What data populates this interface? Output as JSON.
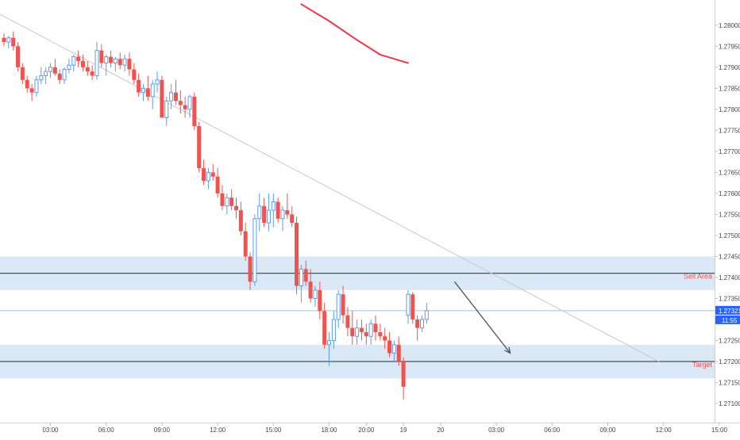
{
  "chart_data": {
    "type": "candlestick",
    "title": "",
    "xlabel": "",
    "ylabel": "",
    "ylim": [
      1.2707,
      1.2806
    ],
    "grid": false,
    "colors": {
      "up": "#5b9cf6",
      "down": "#ef5350",
      "zone_fill": "#dbe8f6",
      "trendline": "#c8c8c8",
      "moving_average": "#f23645",
      "arrow": "#4a5560",
      "price_line": "#9ec4ea",
      "price_label_bg": "#2962ff",
      "axis_text": "#444444"
    },
    "y_ticks": [
      "1.27100",
      "1.27150",
      "1.27200",
      "1.27250",
      "1.27300",
      "1.27350",
      "1.27400",
      "1.27450",
      "1.27500",
      "1.27550",
      "1.27600",
      "1.27650",
      "1.27700",
      "1.27750",
      "1.27800",
      "1.27850",
      "1.27900",
      "1.27950",
      "1.28000"
    ],
    "x_ticks": [
      {
        "label": "03:00",
        "bar": 10
      },
      {
        "label": "06:00",
        "bar": 22
      },
      {
        "label": "09:00",
        "bar": 34
      },
      {
        "label": "12:00",
        "bar": 46
      },
      {
        "label": "15:00",
        "bar": 58
      },
      {
        "label": "18:00",
        "bar": 70
      },
      {
        "label": "20:00",
        "bar": 78
      },
      {
        "label": "19",
        "bar": 86
      },
      {
        "label": "20",
        "bar": 94
      },
      {
        "label": "03:00",
        "bar": 106
      },
      {
        "label": "06:00",
        "bar": 118
      },
      {
        "label": "09:00",
        "bar": 130
      },
      {
        "label": "12:00",
        "bar": 142
      },
      {
        "label": "15:00",
        "bar": 154
      }
    ],
    "candles": [
      [
        1.2797,
        1.2798,
        1.2795,
        1.2796
      ],
      [
        1.2796,
        1.27975,
        1.27945,
        1.2797
      ],
      [
        1.2797,
        1.27985,
        1.2794,
        1.2795
      ],
      [
        1.2795,
        1.2796,
        1.2789,
        1.279
      ],
      [
        1.279,
        1.2791,
        1.2786,
        1.2787
      ],
      [
        1.2787,
        1.2788,
        1.2784,
        1.2785
      ],
      [
        1.2785,
        1.2786,
        1.2782,
        1.2784
      ],
      [
        1.2784,
        1.2788,
        1.2783,
        1.2787
      ],
      [
        1.2787,
        1.279,
        1.2786,
        1.2788
      ],
      [
        1.2788,
        1.279,
        1.2786,
        1.2789
      ],
      [
        1.2789,
        1.2791,
        1.27875,
        1.279
      ],
      [
        1.279,
        1.2792,
        1.2788,
        1.27885
      ],
      [
        1.27885,
        1.27895,
        1.2786,
        1.2787
      ],
      [
        1.2787,
        1.279,
        1.2786,
        1.27895
      ],
      [
        1.27895,
        1.2792,
        1.27885,
        1.27905
      ],
      [
        1.27905,
        1.2793,
        1.2789,
        1.27925
      ],
      [
        1.27925,
        1.2794,
        1.279,
        1.27915
      ],
      [
        1.27915,
        1.2793,
        1.2789,
        1.279
      ],
      [
        1.279,
        1.27915,
        1.2788,
        1.2789
      ],
      [
        1.2789,
        1.27905,
        1.2787,
        1.2788
      ],
      [
        1.2788,
        1.2796,
        1.2787,
        1.2794
      ],
      [
        1.2794,
        1.27955,
        1.279,
        1.2791
      ],
      [
        1.2791,
        1.2793,
        1.2788,
        1.27925
      ],
      [
        1.27925,
        1.2794,
        1.279,
        1.2791
      ],
      [
        1.2791,
        1.27925,
        1.2789,
        1.2792
      ],
      [
        1.2792,
        1.27935,
        1.27895,
        1.27905
      ],
      [
        1.27905,
        1.2793,
        1.2789,
        1.2792
      ],
      [
        1.2792,
        1.27935,
        1.2788,
        1.27895
      ],
      [
        1.27895,
        1.2791,
        1.2786,
        1.2787
      ],
      [
        1.2787,
        1.27885,
        1.2783,
        1.2784
      ],
      [
        1.2784,
        1.2786,
        1.2782,
        1.2785
      ],
      [
        1.2785,
        1.2788,
        1.2782,
        1.2783
      ],
      [
        1.2783,
        1.2787,
        1.278,
        1.2786
      ],
      [
        1.2786,
        1.2789,
        1.2784,
        1.2787
      ],
      [
        1.2787,
        1.2788,
        1.2778,
        1.2778
      ],
      [
        1.2778,
        1.2783,
        1.2776,
        1.2782
      ],
      [
        1.2782,
        1.2786,
        1.278,
        1.2784
      ],
      [
        1.2784,
        1.2787,
        1.2781,
        1.2782
      ],
      [
        1.2782,
        1.27845,
        1.2779,
        1.2781
      ],
      [
        1.2781,
        1.2783,
        1.2778,
        1.278
      ],
      [
        1.278,
        1.27835,
        1.2778,
        1.2783
      ],
      [
        1.2783,
        1.2784,
        1.2775,
        1.2776
      ],
      [
        1.2776,
        1.2777,
        1.2765,
        1.2766
      ],
      [
        1.2766,
        1.2768,
        1.2762,
        1.2763
      ],
      [
        1.2763,
        1.2766,
        1.2761,
        1.2765
      ],
      [
        1.2765,
        1.2767,
        1.2763,
        1.2764
      ],
      [
        1.2764,
        1.2766,
        1.2759,
        1.276
      ],
      [
        1.276,
        1.2762,
        1.2756,
        1.2757
      ],
      [
        1.2757,
        1.276,
        1.2755,
        1.2759
      ],
      [
        1.2759,
        1.2761,
        1.2756,
        1.2757
      ],
      [
        1.2757,
        1.2759,
        1.2754,
        1.2756
      ],
      [
        1.2756,
        1.2758,
        1.275,
        1.2751
      ],
      [
        1.2751,
        1.2753,
        1.2744,
        1.2745
      ],
      [
        1.2745,
        1.2746,
        1.2737,
        1.2739
      ],
      [
        1.2739,
        1.2755,
        1.2738,
        1.2754
      ],
      [
        1.2754,
        1.276,
        1.2751,
        1.2757
      ],
      [
        1.2757,
        1.2759,
        1.2752,
        1.2753
      ],
      [
        1.2753,
        1.276,
        1.2751,
        1.2756
      ],
      [
        1.2756,
        1.276,
        1.2752,
        1.2758
      ],
      [
        1.2758,
        1.2759,
        1.2753,
        1.2754
      ],
      [
        1.2754,
        1.2757,
        1.2751,
        1.2756
      ],
      [
        1.2756,
        1.276,
        1.2754,
        1.2755
      ],
      [
        1.2755,
        1.2757,
        1.2752,
        1.2753
      ],
      [
        1.2753,
        1.27545,
        1.2736,
        1.2738
      ],
      [
        1.2738,
        1.2743,
        1.2734,
        1.2742
      ],
      [
        1.2742,
        1.2744,
        1.2738,
        1.2739
      ],
      [
        1.2739,
        1.2742,
        1.2734,
        1.2735
      ],
      [
        1.2735,
        1.2738,
        1.2733,
        1.2737
      ],
      [
        1.2737,
        1.2739,
        1.273,
        1.2732
      ],
      [
        1.2732,
        1.2734,
        1.2723,
        1.2724
      ],
      [
        1.2724,
        1.2727,
        1.2719,
        1.2725
      ],
      [
        1.2725,
        1.2732,
        1.2723,
        1.273
      ],
      [
        1.273,
        1.2737,
        1.2728,
        1.2736
      ],
      [
        1.2736,
        1.2738,
        1.2729,
        1.2731
      ],
      [
        1.2731,
        1.2733,
        1.2726,
        1.2728
      ],
      [
        1.2728,
        1.2732,
        1.2724,
        1.2726
      ],
      [
        1.2726,
        1.273,
        1.2724,
        1.2728
      ],
      [
        1.2728,
        1.273,
        1.2725,
        1.2727
      ],
      [
        1.2727,
        1.2729,
        1.2724,
        1.2726
      ],
      [
        1.2726,
        1.273,
        1.2724,
        1.2729
      ],
      [
        1.2729,
        1.2731,
        1.2725,
        1.2727
      ],
      [
        1.2727,
        1.2729,
        1.2725,
        1.2726
      ],
      [
        1.2726,
        1.2728,
        1.2723,
        1.2725
      ],
      [
        1.2725,
        1.2727,
        1.2721,
        1.2722
      ],
      [
        1.2722,
        1.2725,
        1.272,
        1.2724
      ],
      [
        1.2724,
        1.2726,
        1.2719,
        1.272
      ],
      [
        1.272,
        1.2721,
        1.2711,
        1.2714
      ],
      [
        1.2731,
        1.2737,
        1.2729,
        1.2736
      ],
      [
        1.2736,
        1.27365,
        1.2729,
        1.273
      ],
      [
        1.273,
        1.2731,
        1.2725,
        1.2728
      ],
      [
        1.2728,
        1.2731,
        1.2727,
        1.273
      ],
      [
        1.273,
        1.2734,
        1.2729,
        1.27321
      ]
    ],
    "zones": [
      {
        "name": "Sell Area",
        "top": 1.2745,
        "bottom": 1.2737,
        "line": 1.2741
      },
      {
        "name": "Target",
        "top": 1.2724,
        "bottom": 1.2716,
        "line": 1.272
      }
    ],
    "current_price": "1.27321",
    "countdown": "11:55",
    "trendline": {
      "from": [
        -5,
        1.2805
      ],
      "to": [
        141,
        1.272
      ]
    },
    "moving_average": [
      [
        64,
        1.2805
      ],
      [
        70,
        1.2801
      ],
      [
        76,
        1.27965
      ],
      [
        81,
        1.2793
      ],
      [
        87,
        1.2791
      ]
    ],
    "arrow": {
      "from": [
        97,
        1.2739
      ],
      "to": [
        109,
        1.2722
      ]
    }
  }
}
